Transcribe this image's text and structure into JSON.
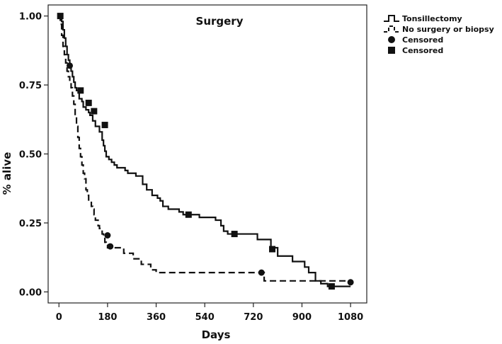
{
  "chart_data": {
    "type": "line",
    "chart_kind": "kaplan-meier step plot",
    "title": "Surgery",
    "xlabel": "Days",
    "ylabel": "% alive",
    "xlim": [
      -40,
      1140
    ],
    "ylim": [
      -0.04,
      1.04
    ],
    "x_ticks": [
      "0",
      "180",
      "360",
      "540",
      "720",
      "900",
      "1080"
    ],
    "x_tick_values": [
      0,
      180,
      360,
      540,
      720,
      900,
      1080
    ],
    "y_ticks": [
      "0.00",
      "0.25",
      "0.50",
      "0.75",
      "1.00"
    ],
    "y_tick_values": [
      0,
      0.25,
      0.5,
      0.75,
      1.0
    ],
    "grid": false,
    "legend_position": "right, outside plot",
    "series": [
      {
        "name": "Tonsillectomy",
        "line_style": "solid",
        "x": [
          0,
          10,
          15,
          20,
          25,
          30,
          35,
          40,
          45,
          50,
          55,
          60,
          65,
          75,
          85,
          90,
          100,
          110,
          115,
          125,
          135,
          145,
          150,
          160,
          165,
          170,
          175,
          185,
          195,
          205,
          215,
          245,
          255,
          285,
          310,
          325,
          345,
          365,
          375,
          385,
          405,
          445,
          460,
          500,
          520,
          580,
          600,
          610,
          625,
          640,
          660,
          700,
          735,
          785,
          810,
          865,
          910,
          925,
          950,
          970,
          995,
          1080
        ],
        "y": [
          1.0,
          0.98,
          0.95,
          0.92,
          0.89,
          0.86,
          0.84,
          0.82,
          0.8,
          0.78,
          0.76,
          0.74,
          0.73,
          0.7,
          0.69,
          0.67,
          0.66,
          0.65,
          0.64,
          0.62,
          0.6,
          0.6,
          0.58,
          0.55,
          0.53,
          0.51,
          0.49,
          0.48,
          0.47,
          0.46,
          0.45,
          0.44,
          0.43,
          0.42,
          0.39,
          0.37,
          0.35,
          0.34,
          0.33,
          0.31,
          0.3,
          0.29,
          0.28,
          0.28,
          0.27,
          0.26,
          0.24,
          0.22,
          0.21,
          0.21,
          0.21,
          0.21,
          0.19,
          0.16,
          0.13,
          0.11,
          0.09,
          0.07,
          0.04,
          0.03,
          0.02,
          0.02
        ]
      },
      {
        "name": "No surgery or biopsy",
        "line_style": "dashed",
        "x": [
          0,
          5,
          10,
          15,
          20,
          25,
          30,
          35,
          40,
          45,
          50,
          55,
          60,
          65,
          70,
          75,
          80,
          85,
          90,
          95,
          100,
          105,
          110,
          120,
          125,
          130,
          135,
          145,
          150,
          160,
          165,
          170,
          175,
          180,
          190,
          240,
          275,
          305,
          340,
          360,
          720,
          760,
          1000,
          1080
        ],
        "y": [
          1.0,
          0.97,
          0.93,
          0.89,
          0.86,
          0.83,
          0.8,
          0.78,
          0.76,
          0.74,
          0.71,
          0.68,
          0.64,
          0.6,
          0.56,
          0.52,
          0.49,
          0.46,
          0.43,
          0.41,
          0.37,
          0.35,
          0.33,
          0.31,
          0.3,
          0.28,
          0.26,
          0.24,
          0.23,
          0.21,
          0.2,
          0.18,
          0.17,
          0.16,
          0.16,
          0.14,
          0.12,
          0.1,
          0.08,
          0.07,
          0.07,
          0.04,
          0.04,
          0.04
        ]
      }
    ],
    "censored_markers": [
      {
        "name": "Censored",
        "marker": "circle",
        "points": [
          [
            40,
            0.82
          ],
          [
            180,
            0.205
          ],
          [
            190,
            0.165
          ],
          [
            750,
            0.07
          ],
          [
            1080,
            0.035
          ]
        ]
      },
      {
        "name": "Censored",
        "marker": "square",
        "points": [
          [
            5,
            1.0
          ],
          [
            80,
            0.73
          ],
          [
            110,
            0.685
          ],
          [
            130,
            0.655
          ],
          [
            170,
            0.605
          ],
          [
            480,
            0.28
          ],
          [
            650,
            0.21
          ],
          [
            790,
            0.155
          ],
          [
            1010,
            0.02
          ]
        ]
      }
    ]
  }
}
